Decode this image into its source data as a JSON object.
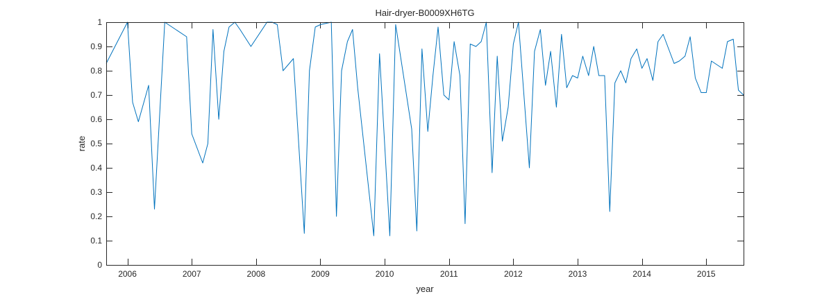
{
  "chart_data": {
    "type": "line",
    "title": "Hair-dryer-B0009XH6TG",
    "xlabel": "year",
    "ylabel": "rate",
    "xlim": [
      2005.67,
      2015.58
    ],
    "ylim": [
      0,
      1
    ],
    "x_ticks": [
      2006,
      2007,
      2008,
      2009,
      2010,
      2011,
      2012,
      2013,
      2014,
      2015
    ],
    "x_tick_labels": [
      "2006",
      "2007",
      "2008",
      "2009",
      "2010",
      "2011",
      "2012",
      "2013",
      "2014",
      "2015"
    ],
    "y_ticks": [
      0,
      0.1,
      0.2,
      0.3,
      0.4,
      0.5,
      0.6,
      0.7,
      0.8,
      0.9,
      1
    ],
    "y_tick_labels": [
      "0",
      "0.1",
      "0.2",
      "0.3",
      "0.4",
      "0.5",
      "0.6",
      "0.7",
      "0.8",
      "0.9",
      "1"
    ],
    "grid": false,
    "line_color": "#0072BD",
    "series": [
      {
        "x": [
          2005.67,
          2006.0,
          2006.08,
          2006.17,
          2006.33,
          2006.42,
          2006.58,
          2006.92,
          2007.0,
          2007.17,
          2007.25,
          2007.33,
          2007.42,
          2007.5,
          2007.58,
          2007.67,
          2007.75,
          2007.92,
          2008.17,
          2008.25,
          2008.33,
          2008.42,
          2008.58,
          2008.75,
          2008.83,
          2008.92,
          2009.0,
          2009.17,
          2009.25,
          2009.33,
          2009.42,
          2009.5,
          2009.58,
          2009.83,
          2009.92,
          2010.08,
          2010.17,
          2010.42,
          2010.5,
          2010.58,
          2010.67,
          2010.75,
          2010.83,
          2010.92,
          2011.0,
          2011.08,
          2011.17,
          2011.25,
          2011.33,
          2011.42,
          2011.5,
          2011.58,
          2011.67,
          2011.75,
          2011.83,
          2011.92,
          2012.0,
          2012.08,
          2012.25,
          2012.33,
          2012.42,
          2012.5,
          2012.58,
          2012.67,
          2012.75,
          2012.83,
          2012.92,
          2013.0,
          2013.08,
          2013.17,
          2013.25,
          2013.33,
          2013.42,
          2013.5,
          2013.58,
          2013.67,
          2013.75,
          2013.83,
          2013.92,
          2014.0,
          2014.08,
          2014.17,
          2014.25,
          2014.33,
          2014.5,
          2014.58,
          2014.67,
          2014.75,
          2014.83,
          2014.92,
          2015.0,
          2015.08,
          2015.25,
          2015.33,
          2015.42,
          2015.5,
          2015.58
        ],
        "values": [
          0.83,
          1.0,
          0.67,
          0.59,
          0.74,
          0.23,
          1.0,
          0.94,
          0.54,
          0.42,
          0.5,
          0.97,
          0.6,
          0.88,
          0.98,
          1.0,
          0.97,
          0.9,
          1.0,
          1.0,
          0.99,
          0.8,
          0.85,
          0.13,
          0.8,
          0.98,
          0.99,
          1.0,
          0.2,
          0.8,
          0.92,
          0.97,
          0.73,
          0.12,
          0.87,
          0.12,
          0.99,
          0.56,
          0.14,
          0.89,
          0.55,
          0.78,
          0.98,
          0.7,
          0.68,
          0.92,
          0.78,
          0.17,
          0.91,
          0.9,
          0.92,
          1.0,
          0.38,
          0.86,
          0.51,
          0.65,
          0.91,
          1.0,
          0.4,
          0.88,
          0.97,
          0.74,
          0.88,
          0.65,
          0.95,
          0.73,
          0.78,
          0.77,
          0.86,
          0.78,
          0.9,
          0.78,
          0.78,
          0.22,
          0.75,
          0.8,
          0.75,
          0.85,
          0.89,
          0.81,
          0.85,
          0.76,
          0.92,
          0.95,
          0.83,
          0.84,
          0.86,
          0.94,
          0.77,
          0.71,
          0.71,
          0.84,
          0.81,
          0.92,
          0.93,
          0.72,
          0.7
        ]
      }
    ]
  }
}
